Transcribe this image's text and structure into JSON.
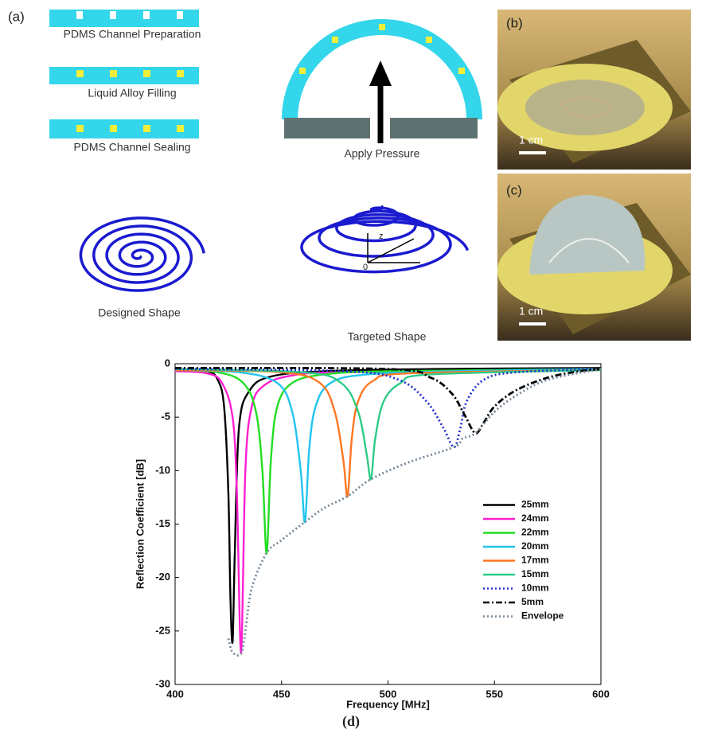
{
  "figure": {
    "panel_a": {
      "label": "(a)",
      "steps": [
        "PDMS Channel Preparation",
        "Liquid Alloy Filling",
        "PDMS Channel Sealing"
      ],
      "pressure": "Apply Pressure",
      "designed": "Designed Shape",
      "targeted": "Targeted Shape",
      "axis_z": "z",
      "axis_origin": "0"
    },
    "panel_b": {
      "label": "(b)",
      "scale": "1 cm"
    },
    "panel_c": {
      "label": "(c)",
      "scale": "1 cm"
    },
    "panel_d": {
      "label": "(d)"
    }
  },
  "chart_data": {
    "type": "line",
    "xlabel": "Frequency [MHz]",
    "ylabel": "Reflection Coefficient [dB]",
    "xlim": [
      400,
      600
    ],
    "ylim": [
      -30,
      0
    ],
    "xticks": [
      400,
      450,
      500,
      550,
      600
    ],
    "yticks": [
      0,
      -5,
      -10,
      -15,
      -20,
      -25,
      -30
    ],
    "grid": false,
    "legend": "lower right",
    "series": [
      {
        "name": "25mm",
        "color": "#000000",
        "style": "solid",
        "x": [
          400,
          415,
          420,
          423,
          425,
          426,
          427,
          428,
          430,
          435,
          445,
          470,
          520,
          600
        ],
        "values": [
          -0.6,
          -0.7,
          -1.5,
          -4,
          -12,
          -22,
          -26,
          -18,
          -6,
          -2.5,
          -1.2,
          -0.7,
          -0.5,
          -0.4
        ]
      },
      {
        "name": "24mm",
        "color": "#ff1fd2",
        "style": "solid",
        "x": [
          400,
          415,
          422,
          427,
          429,
          431,
          433,
          436,
          442,
          455,
          480,
          600
        ],
        "values": [
          -0.7,
          -0.9,
          -1.8,
          -5,
          -12,
          -27,
          -10,
          -4,
          -2,
          -1.1,
          -0.8,
          -0.5
        ]
      },
      {
        "name": "22mm",
        "color": "#22dd22",
        "style": "solid",
        "x": [
          400,
          420,
          432,
          438,
          441,
          443,
          445,
          448,
          455,
          470,
          500,
          600
        ],
        "values": [
          -0.6,
          -0.8,
          -1.8,
          -4.5,
          -10,
          -17.7,
          -9,
          -4,
          -1.8,
          -1,
          -0.7,
          -0.5
        ]
      },
      {
        "name": "20mm",
        "color": "#22c4ee",
        "style": "solid",
        "x": [
          400,
          430,
          448,
          455,
          459,
          461,
          463,
          466,
          473,
          490,
          530,
          600
        ],
        "values": [
          -0.6,
          -0.8,
          -1.8,
          -4.5,
          -10,
          -14.8,
          -8,
          -4,
          -1.8,
          -1,
          -0.7,
          -0.5
        ]
      },
      {
        "name": "17mm",
        "color": "#ff7722",
        "style": "solid",
        "x": [
          400,
          450,
          468,
          475,
          479,
          481,
          483,
          486,
          493,
          510,
          600
        ],
        "values": [
          -0.6,
          -0.8,
          -1.8,
          -4.5,
          -9,
          -12.4,
          -7,
          -3.5,
          -1.6,
          -0.9,
          -0.6
        ]
      },
      {
        "name": "15mm",
        "color": "#2ecc88",
        "style": "solid",
        "x": [
          400,
          460,
          478,
          486,
          490,
          492,
          494,
          498,
          506,
          520,
          600
        ],
        "values": [
          -0.5,
          -0.8,
          -1.8,
          -4.5,
          -8.5,
          -10.8,
          -7,
          -3.5,
          -1.8,
          -1,
          -0.6
        ]
      },
      {
        "name": "10mm",
        "color": "#2233cc",
        "style": "dotted",
        "x": [
          400,
          480,
          505,
          518,
          526,
          531,
          534,
          537,
          545,
          560,
          600
        ],
        "values": [
          -0.5,
          -0.7,
          -1.5,
          -3.5,
          -6,
          -7.8,
          -6,
          -3.5,
          -1.5,
          -0.8,
          -0.5
        ]
      },
      {
        "name": "5mm",
        "color": "#000000",
        "style": "dashdot",
        "x": [
          400,
          500,
          520,
          530,
          536,
          541,
          545,
          550,
          560,
          575,
          590,
          600
        ],
        "values": [
          -0.4,
          -0.5,
          -1.3,
          -2.8,
          -4.8,
          -6.5,
          -5.5,
          -4,
          -2.5,
          -1.3,
          -0.7,
          -0.5
        ]
      },
      {
        "name": "Envelope",
        "color": "#778899",
        "style": "dotted",
        "x": [
          425,
          427,
          431,
          433,
          436,
          443,
          450,
          461,
          470,
          481,
          492,
          510,
          531,
          535,
          541,
          550,
          560,
          575,
          600
        ],
        "values": [
          -25.7,
          -27,
          -27.1,
          -25,
          -21,
          -17.7,
          -16.5,
          -14.8,
          -13.5,
          -12.4,
          -10.8,
          -9.2,
          -7.8,
          -7,
          -6.5,
          -4.5,
          -3,
          -1.5,
          -0.5
        ]
      }
    ]
  }
}
